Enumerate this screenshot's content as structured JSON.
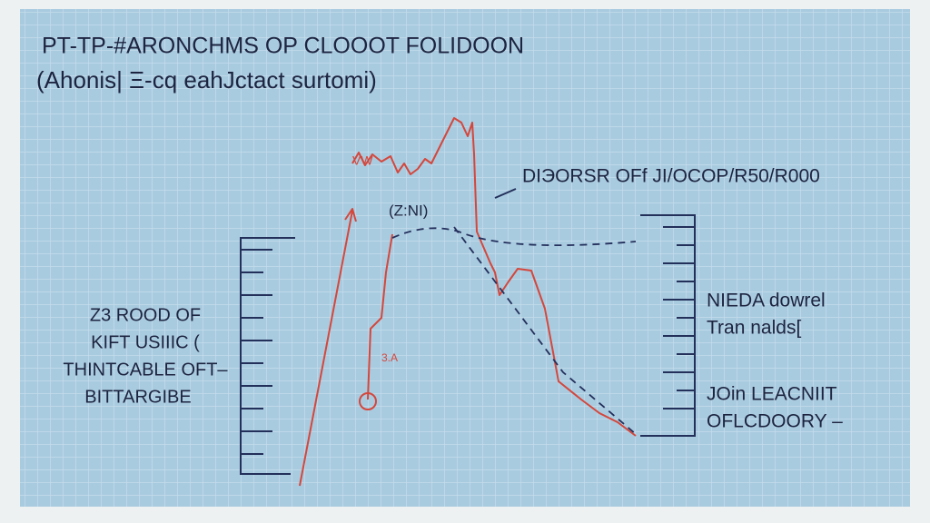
{
  "header": {
    "title": "PT-TP-#ARONCHMS OP CLOOOT FOLIDOON",
    "subtitle": "(Ahonis| Ξ-cq eahJctact surtomi)"
  },
  "annotations": {
    "peak": "(Z:NI)",
    "small": "3.A",
    "squiggle": "VW",
    "top_right": "DIЭORSR OFf JI/OCOP/R50/R000"
  },
  "left_block": [
    "Z3 ROOD OF",
    "KIFT USIIIC (",
    "THINTCABLE OFT–",
    "BITTARGIBE"
  ],
  "right_block": [
    "NIEDA dowrel",
    "Tran nalds[",
    "JOin LEACNIIT",
    "OFLCDOORY –"
  ]
}
